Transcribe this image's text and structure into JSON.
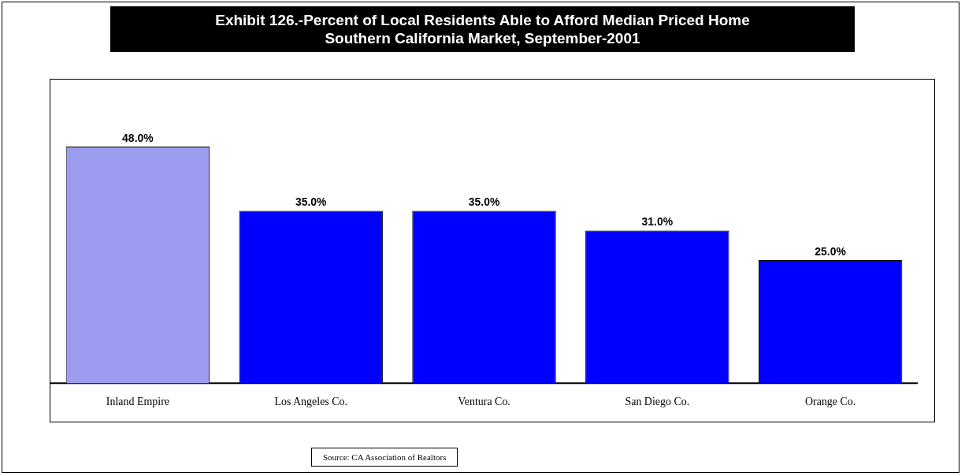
{
  "chart_data": {
    "type": "bar",
    "title": "Exhibit 126.-Percent of Local Residents Able to Afford Median Priced Home\nSouthern California Market, September-2001",
    "categories": [
      "Inland Empire",
      "Los Angeles Co.",
      "Ventura Co.",
      "San Diego Co.",
      "Orange Co."
    ],
    "values": [
      48.0,
      35.0,
      35.0,
      31.0,
      25.0
    ],
    "value_labels": [
      "48.0%",
      "35.0%",
      "35.0%",
      "31.0%",
      "25.0%"
    ],
    "colors": [
      "#9c9cf0",
      "#0000ff",
      "#0000ff",
      "#0000ff",
      "#0000ff"
    ],
    "annotations": [
      "Source:  CA Association of Realtors"
    ],
    "grid": false,
    "legend": false
  }
}
